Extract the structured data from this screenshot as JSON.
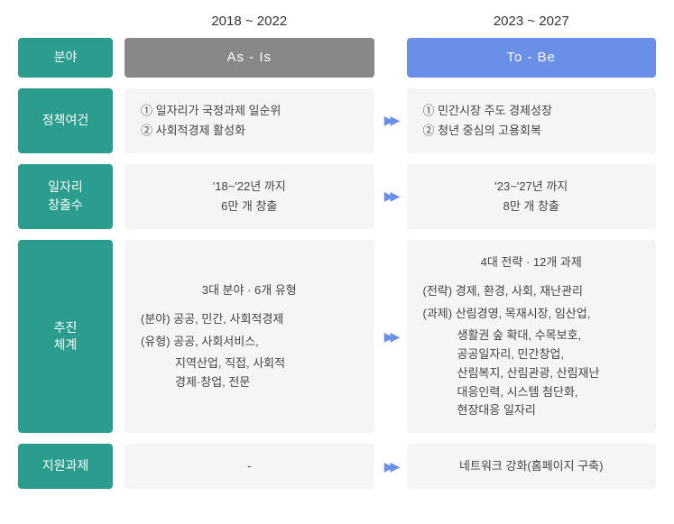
{
  "periods": {
    "left": "2018 ~ 2022",
    "right": "2023 ~ 2027"
  },
  "header": {
    "label": "분야",
    "asis": "As - Is",
    "tobe": "To - Be"
  },
  "colors": {
    "label_bg": "#2a9d8f",
    "asis_bg": "#888888",
    "tobe_bg": "#6a8fe8",
    "content_bg": "#f5f5f5",
    "arrow_color": "#6a8fe8",
    "text_color": "#444444",
    "period_color": "#333333"
  },
  "rows": {
    "policy": {
      "label": "정책여건",
      "asis": {
        "line1": "① 일자리가 국정과제 일순위",
        "line2": "② 사회적경제 활성화"
      },
      "tobe": {
        "line1": "① 민간시장 주도 경제성장",
        "line2": "② 청년 중심의 고용회복"
      }
    },
    "jobs": {
      "label": "일자리\n창출수",
      "asis": {
        "line1": "'18~'22년 까지",
        "line2": "6만 개 창출"
      },
      "tobe": {
        "line1": "'23~'27년 까지",
        "line2": "8만 개 창출"
      }
    },
    "system": {
      "label": "추진\n체계",
      "asis": {
        "title": "3대 분야 · 6개 유형",
        "cat1_label": "(분야)",
        "cat1_text": "공공, 민간, 사회적경제",
        "cat2_label": "(유형)",
        "cat2_text": "공공, 사회서비스,",
        "cat2_cont1": "지역산업, 직접, 사회적",
        "cat2_cont2": "경제·창업, 전문"
      },
      "tobe": {
        "title": "4대 전략 · 12개 과제",
        "cat1_label": "(전략)",
        "cat1_text": "경제, 환경, 사회, 재난관리",
        "cat2_label": "(과제)",
        "cat2_text": "산림경영, 목재시장, 임산업,",
        "cat2_cont1": "생활권 숲 확대, 수목보호,",
        "cat2_cont2": "공공일자리, 민간창업,",
        "cat2_cont3": "산림복지, 산림관광, 산림재난",
        "cat2_cont4": "대응인력, 시스템 첨단화,",
        "cat2_cont5": "현장대응 일자리"
      }
    },
    "support": {
      "label": "지원과제",
      "asis": "-",
      "tobe": "네트워크 강화(홈페이지 구축)"
    }
  }
}
